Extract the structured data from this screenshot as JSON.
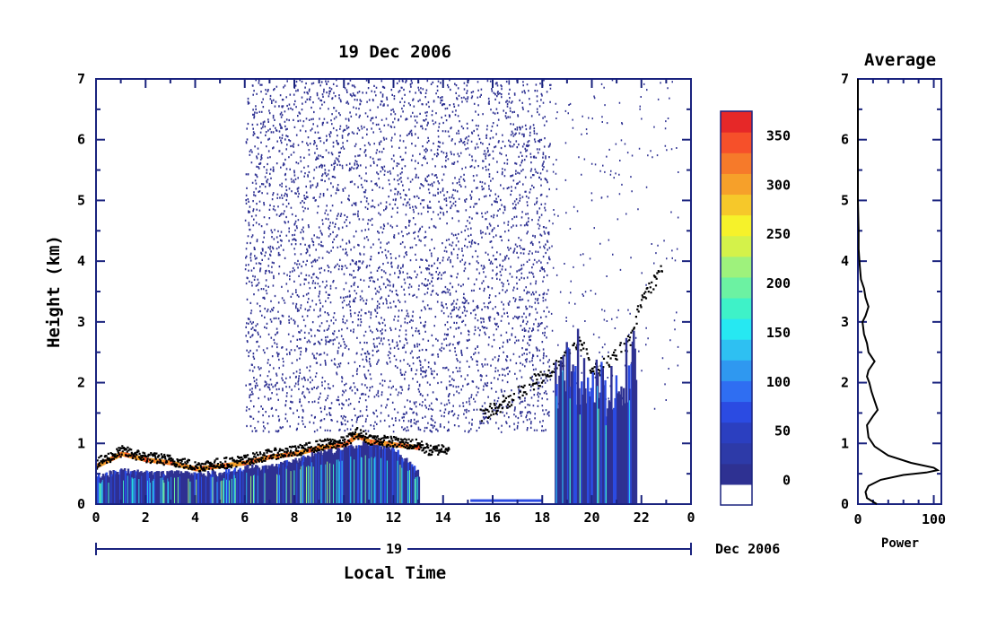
{
  "chart_data": [
    {
      "type": "heatmap",
      "title": "19 Dec 2006",
      "xlabel": "Local Time",
      "ylabel": "Height (km)",
      "x_ticks": [
        "0",
        "2",
        "4",
        "6",
        "8",
        "10",
        "12",
        "14",
        "16",
        "18",
        "20",
        "22",
        "0"
      ],
      "y_ticks": [
        "0",
        "1",
        "2",
        "3",
        "4",
        "5",
        "6",
        "7"
      ],
      "xlim": [
        0,
        24
      ],
      "ylim": [
        0,
        7
      ],
      "date_bar": {
        "day": "19",
        "month_year": "Dec 2006"
      },
      "colorbar": {
        "ticks": [
          "0",
          "50",
          "100",
          "150",
          "200",
          "250",
          "300",
          "350"
        ],
        "range": [
          -25,
          375
        ],
        "colors": [
          "#ffffff",
          "#2e3192",
          "#2d3aa8",
          "#2b3fc0",
          "#2b4be2",
          "#2f6ef2",
          "#2f98f0",
          "#2ec0f2",
          "#26e8f2",
          "#3ef2c8",
          "#6cf2a2",
          "#9ef27c",
          "#d4f24a",
          "#f6f22a",
          "#f6c82a",
          "#f6a02a",
          "#f67a2a",
          "#f6502a",
          "#e62828"
        ]
      },
      "layers": {
        "surface_layer_top_km": [
          [
            0,
            0.45
          ],
          [
            1,
            0.55
          ],
          [
            2,
            0.5
          ],
          [
            3,
            0.5
          ],
          [
            4,
            0.5
          ],
          [
            5,
            0.5
          ],
          [
            6,
            0.6
          ],
          [
            7,
            0.6
          ],
          [
            8,
            0.7
          ],
          [
            9,
            0.85
          ],
          [
            10,
            0.9
          ],
          [
            11,
            1.0
          ],
          [
            12,
            0.9
          ],
          [
            13,
            0.5
          ]
        ],
        "cloud_top_km": [
          [
            0,
            0.65
          ],
          [
            0.5,
            0.75
          ],
          [
            1,
            0.85
          ],
          [
            2,
            0.75
          ],
          [
            3,
            0.7
          ],
          [
            4,
            0.6
          ],
          [
            5,
            0.65
          ],
          [
            6,
            0.7
          ],
          [
            7,
            0.8
          ],
          [
            8,
            0.85
          ],
          [
            9,
            0.95
          ],
          [
            10,
            1.0
          ],
          [
            10.5,
            1.15
          ],
          [
            11,
            1.05
          ],
          [
            12,
            1.0
          ],
          [
            13,
            0.95
          ],
          [
            13.5,
            0.85
          ],
          [
            14,
            0.9
          ]
        ],
        "elevated_trace_km": [
          [
            15.5,
            1.5
          ],
          [
            16,
            1.6
          ],
          [
            16.5,
            1.7
          ],
          [
            17,
            1.85
          ],
          [
            17.5,
            2.0
          ],
          [
            18,
            2.1
          ],
          [
            18.5,
            2.3
          ],
          [
            19,
            2.45
          ],
          [
            19.5,
            2.7
          ],
          [
            20,
            2.2
          ],
          [
            20.5,
            2.3
          ],
          [
            21,
            2.5
          ],
          [
            21.5,
            2.7
          ],
          [
            22,
            3.4
          ],
          [
            22.5,
            3.7
          ],
          [
            22.8,
            3.9
          ]
        ]
      },
      "noise_region_hours": [
        6,
        18.3
      ]
    },
    {
      "type": "line",
      "title": "Average",
      "xlabel": "Power",
      "ylabel": "",
      "x_ticks": [
        "0",
        "100"
      ],
      "y_ticks": [
        "0",
        "1",
        "2",
        "3",
        "4",
        "5",
        "6",
        "7"
      ],
      "xlim": [
        0,
        110
      ],
      "ylim": [
        0,
        7
      ],
      "series": [
        {
          "x": [
            25,
            12,
            10,
            14,
            30,
            60,
            90,
            105,
            100,
            70,
            40,
            22,
            14,
            12,
            20,
            26,
            22,
            18,
            15,
            12,
            14,
            22,
            14,
            12,
            8,
            6,
            10,
            14,
            10,
            8,
            4,
            3,
            2,
            1,
            1,
            0,
            0,
            0,
            0,
            0
          ],
          "y": [
            0,
            0.1,
            0.2,
            0.3,
            0.4,
            0.48,
            0.52,
            0.56,
            0.6,
            0.68,
            0.8,
            0.95,
            1.1,
            1.3,
            1.45,
            1.55,
            1.7,
            1.85,
            2.0,
            2.1,
            2.2,
            2.35,
            2.5,
            2.65,
            2.8,
            3.0,
            3.1,
            3.25,
            3.4,
            3.55,
            3.7,
            3.85,
            4.0,
            4.2,
            4.5,
            5.0,
            5.5,
            6.0,
            6.5,
            7.0
          ]
        }
      ]
    }
  ]
}
